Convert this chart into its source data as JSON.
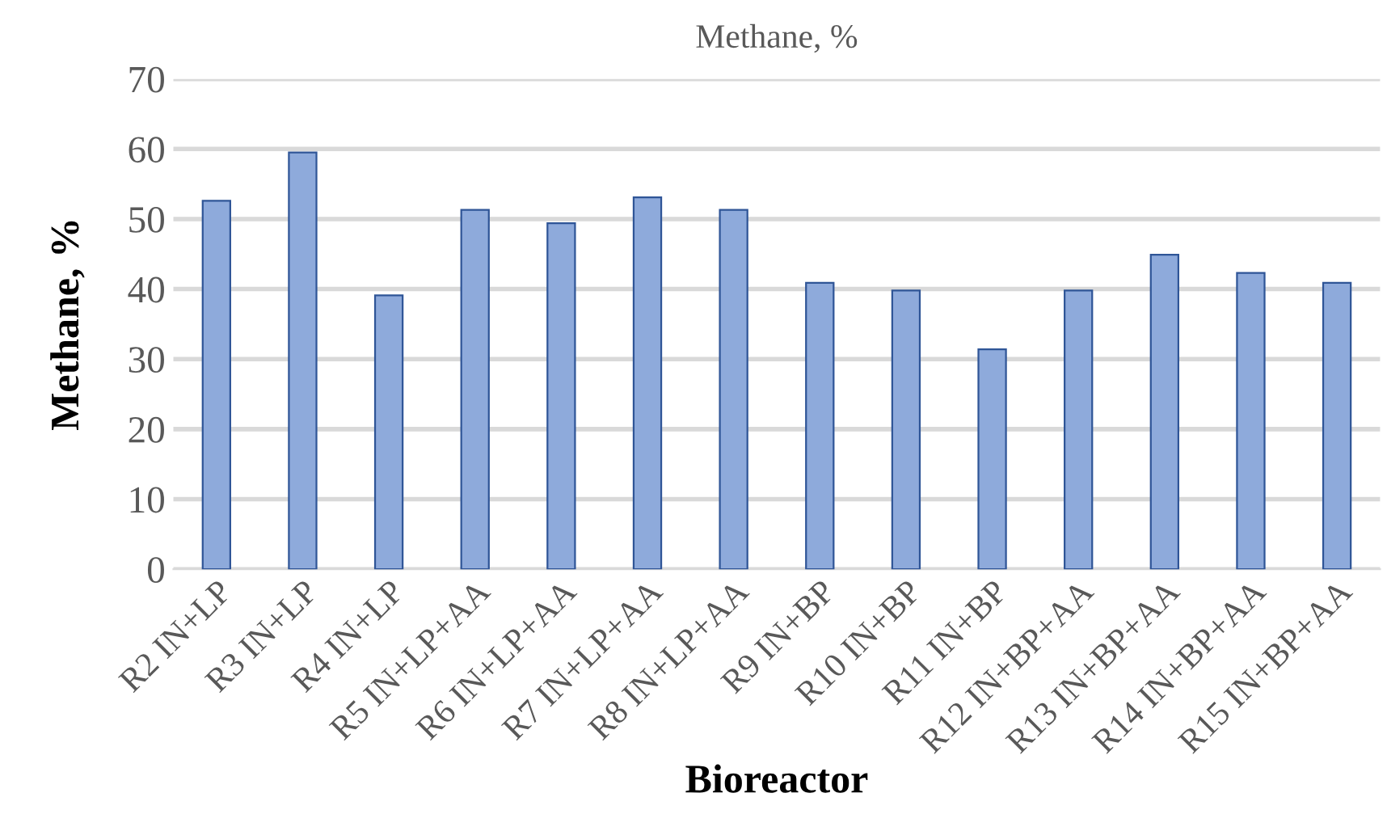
{
  "chart_data": {
    "type": "bar",
    "title": "Methane, %",
    "xlabel": "Bioreactor",
    "ylabel": "Methane, %",
    "categories": [
      "R2 IN+LP",
      "R3 IN+LP",
      "R4 IN+LP",
      "R5 IN+LP+AA",
      "R6 IN+LP+AA",
      "R7 IN+LP+AA",
      "R8 IN+LP+AA",
      "R9 IN+BP",
      "R10 IN+BP",
      "R11 IN+BP",
      "R12 IN+BP+AA",
      "R13 IN+BP+AA",
      "R14 IN+BP+AA",
      "R15 IN+BP+AA"
    ],
    "values": [
      52.6,
      59.5,
      39.1,
      51.3,
      49.4,
      53.1,
      51.3,
      40.9,
      39.8,
      31.4,
      39.8,
      44.9,
      42.3,
      40.9
    ],
    "color": "#8eaadb",
    "ylim": [
      0,
      70
    ],
    "yticks": [
      0,
      10,
      20,
      30,
      40,
      50,
      60,
      70
    ],
    "grid": "y",
    "legend": false
  }
}
